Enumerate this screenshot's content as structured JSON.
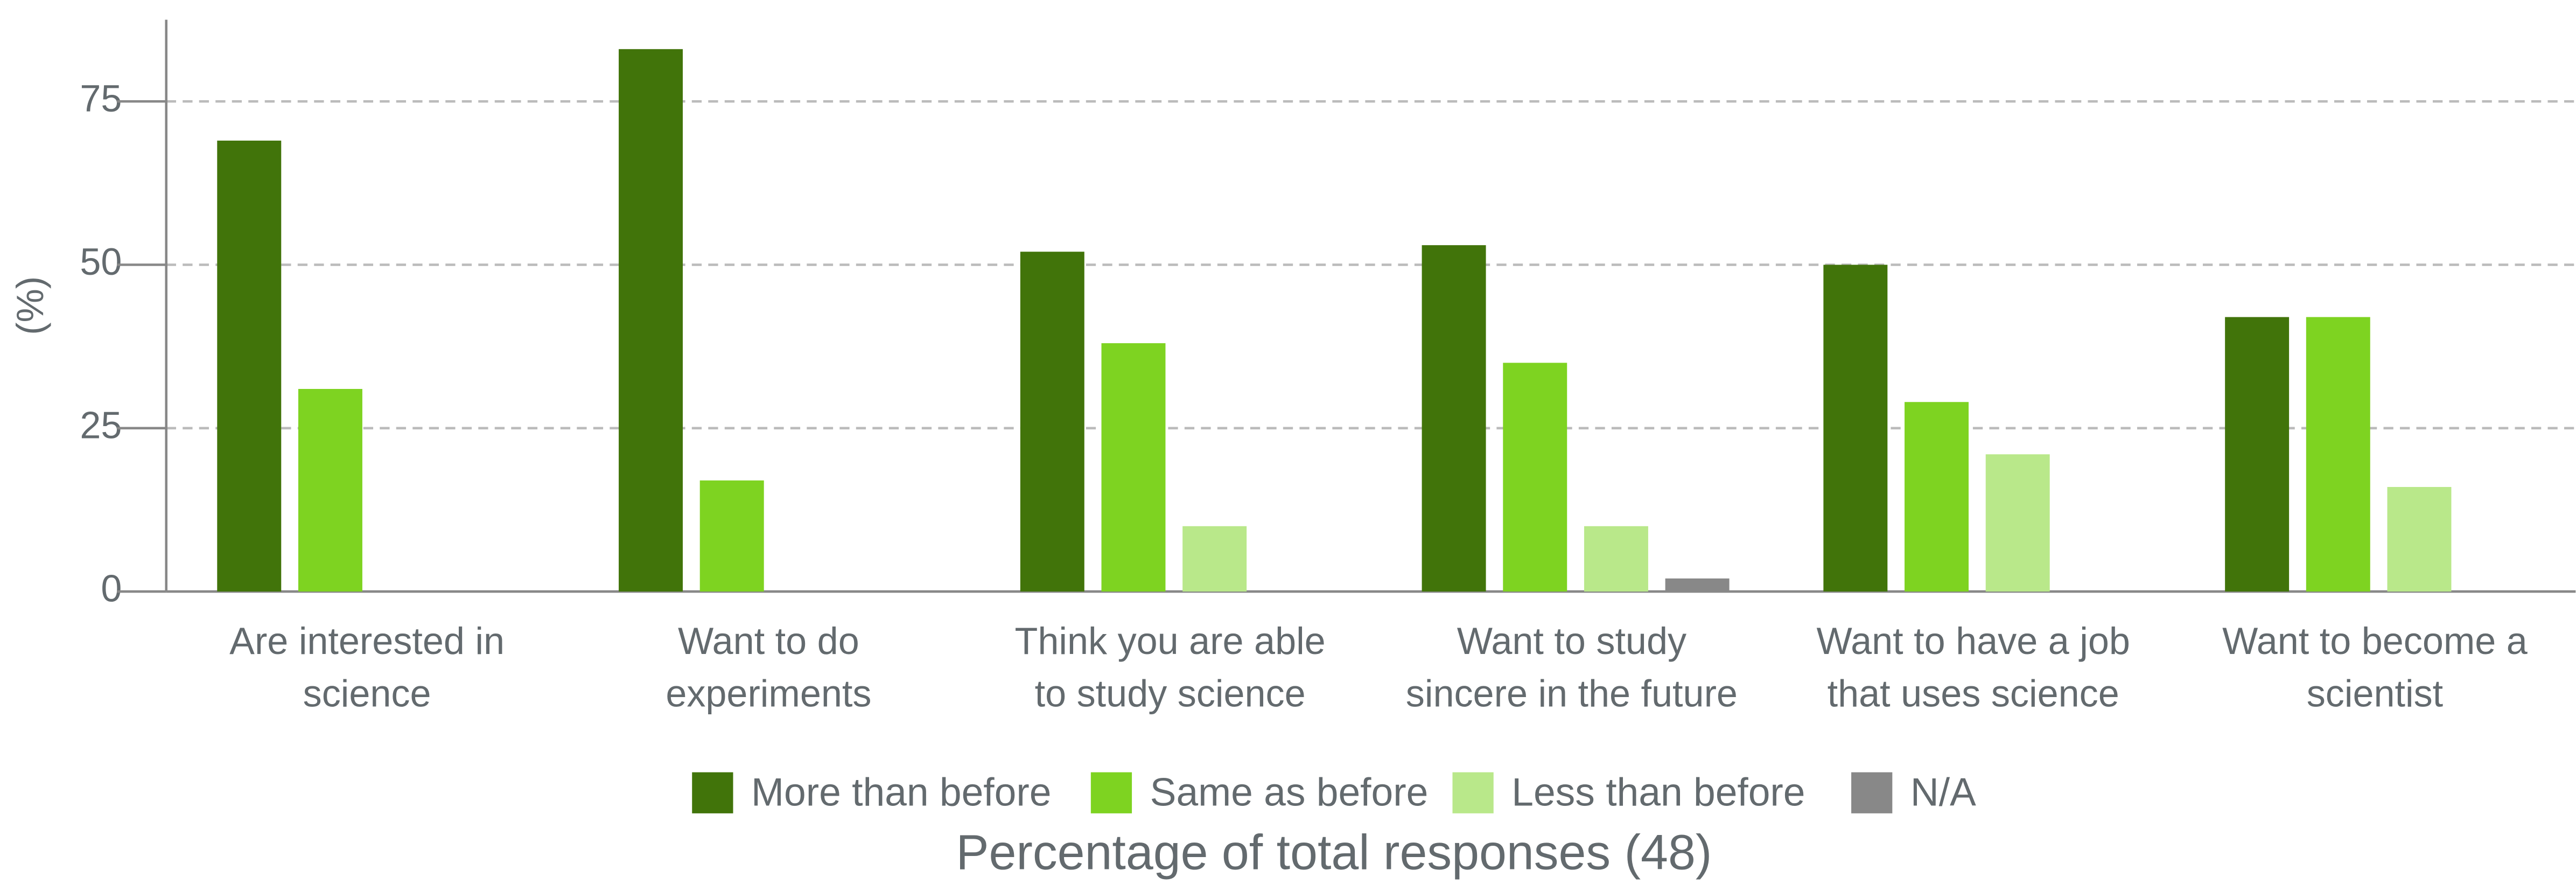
{
  "chart_data": {
    "type": "bar",
    "title": "Percentage of total responses (48)",
    "y_label": "(%)",
    "categories": [
      "Are interested in\nscience",
      "Want to do\nexperiments",
      "Think you are able\nto study science",
      "Want to study\nsincere in the future",
      "Want to have a job\nthat uses science",
      "Want to become a\nscientist"
    ],
    "series": [
      {
        "name": "More than before",
        "color": "#41740a",
        "values": [
          69,
          83,
          52,
          53,
          50,
          42
        ]
      },
      {
        "name": "Same as before",
        "color": "#7ed321",
        "values": [
          31,
          17,
          38,
          35,
          29,
          42
        ]
      },
      {
        "name": "Less than before",
        "color": "#b9e88a",
        "values": [
          0,
          0,
          10,
          10,
          21,
          16
        ]
      },
      {
        "name": "N/A",
        "color": "#888888",
        "values": [
          0,
          0,
          0,
          2,
          0,
          0
        ]
      }
    ],
    "ylim": [
      0,
      87.5
    ],
    "yticks": [
      0,
      25,
      50,
      75
    ],
    "grid": true,
    "legend": "bottom"
  }
}
